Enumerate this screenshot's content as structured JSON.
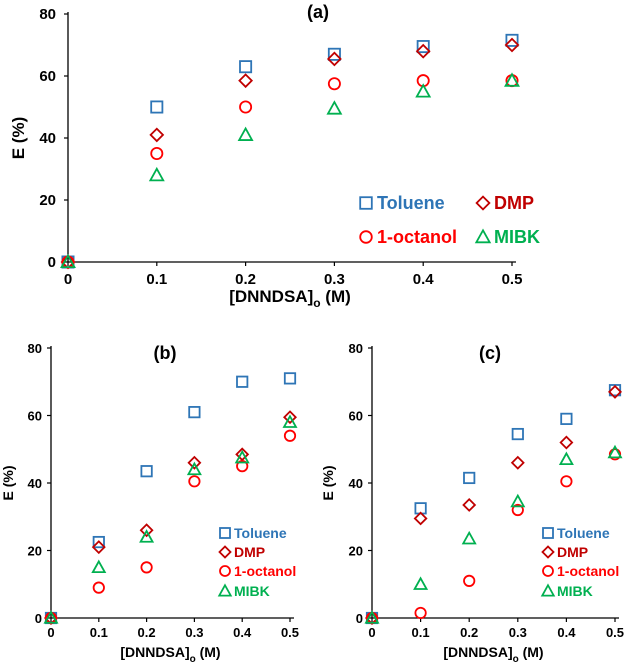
{
  "colors": {
    "toluene": "#2e75b6",
    "dmp": "#c00000",
    "octanol": "#ff0000",
    "mibk": "#00b050",
    "axis": "#000000"
  },
  "chart_data": [
    {
      "id": "a",
      "type": "scatter",
      "title": "(a)",
      "xlabel_main": "[DNNDSA]",
      "xlabel_sub": "o",
      "xlabel_tail": " (M)",
      "ylabel": "E (%)",
      "xlim": [
        0,
        0.5
      ],
      "ylim": [
        0,
        80
      ],
      "xticks": [
        "0",
        "0.1",
        "0.2",
        "0.3",
        "0.4",
        "0.5"
      ],
      "yticks": [
        "0",
        "20",
        "40",
        "60",
        "80"
      ],
      "legend_position": "bottom-right",
      "series": [
        {
          "name": "Toluene",
          "marker": "square",
          "color_key": "toluene",
          "x": [
            0,
            0.1,
            0.2,
            0.3,
            0.4,
            0.5
          ],
          "y": [
            0,
            50,
            63,
            67,
            69.5,
            71.5
          ]
        },
        {
          "name": "DMP",
          "marker": "diamond",
          "color_key": "dmp",
          "x": [
            0,
            0.1,
            0.2,
            0.3,
            0.4,
            0.5
          ],
          "y": [
            0,
            41,
            58.5,
            65.5,
            68,
            70
          ]
        },
        {
          "name": "1-octanol",
          "marker": "circle",
          "color_key": "octanol",
          "x": [
            0,
            0.1,
            0.2,
            0.3,
            0.4,
            0.5
          ],
          "y": [
            0,
            35,
            50,
            57.5,
            58.5,
            58.5
          ]
        },
        {
          "name": "MIBK",
          "marker": "triangle",
          "color_key": "mibk",
          "x": [
            0,
            0.1,
            0.2,
            0.3,
            0.4,
            0.5
          ],
          "y": [
            0,
            28,
            41,
            49.5,
            55,
            58.5
          ]
        }
      ]
    },
    {
      "id": "b",
      "type": "scatter",
      "title": "(b)",
      "xlabel_main": "[DNNDSA]",
      "xlabel_sub": "o",
      "xlabel_tail": " (M)",
      "ylabel": "E (%)",
      "xlim": [
        0,
        0.5
      ],
      "ylim": [
        0,
        80
      ],
      "xticks": [
        "0",
        "0.1",
        "0.2",
        "0.3",
        "0.4",
        "0.5"
      ],
      "yticks": [
        "0",
        "20",
        "40",
        "60",
        "80"
      ],
      "legend_position": "bottom-right",
      "series": [
        {
          "name": "Toluene",
          "marker": "square",
          "color_key": "toluene",
          "x": [
            0,
            0.1,
            0.2,
            0.3,
            0.4,
            0.5
          ],
          "y": [
            0,
            22.5,
            43.5,
            61,
            70,
            71
          ]
        },
        {
          "name": "DMP",
          "marker": "diamond",
          "color_key": "dmp",
          "x": [
            0,
            0.1,
            0.2,
            0.3,
            0.4,
            0.5
          ],
          "y": [
            0,
            21,
            26,
            46,
            48.5,
            59.5
          ]
        },
        {
          "name": "1-octanol",
          "marker": "circle",
          "color_key": "octanol",
          "x": [
            0,
            0.1,
            0.2,
            0.3,
            0.4,
            0.5
          ],
          "y": [
            0,
            9,
            15,
            40.5,
            45,
            54
          ]
        },
        {
          "name": "MIBK",
          "marker": "triangle",
          "color_key": "mibk",
          "x": [
            0,
            0.1,
            0.2,
            0.3,
            0.4,
            0.5
          ],
          "y": [
            0,
            15,
            24,
            44,
            47.5,
            58
          ]
        }
      ]
    },
    {
      "id": "c",
      "type": "scatter",
      "title": "(c)",
      "xlabel_main": "[DNNDSA]",
      "xlabel_sub": "o",
      "xlabel_tail": " (M)",
      "ylabel": "E (%)",
      "xlim": [
        0,
        0.5
      ],
      "ylim": [
        0,
        80
      ],
      "xticks": [
        "0",
        "0.1",
        "0.2",
        "0.3",
        "0.4",
        "0.5"
      ],
      "yticks": [
        "0",
        "20",
        "40",
        "60",
        "80"
      ],
      "legend_position": "bottom-right",
      "series": [
        {
          "name": "Toluene",
          "marker": "square",
          "color_key": "toluene",
          "x": [
            0,
            0.1,
            0.2,
            0.3,
            0.4,
            0.5
          ],
          "y": [
            0,
            32.5,
            41.5,
            54.5,
            59,
            67.5
          ]
        },
        {
          "name": "DMP",
          "marker": "diamond",
          "color_key": "dmp",
          "x": [
            0,
            0.1,
            0.2,
            0.3,
            0.4,
            0.5
          ],
          "y": [
            0,
            29.5,
            33.5,
            46,
            52,
            67
          ]
        },
        {
          "name": "1-octanol",
          "marker": "circle",
          "color_key": "octanol",
          "x": [
            0,
            0.1,
            0.2,
            0.3,
            0.4,
            0.5
          ],
          "y": [
            0,
            1.5,
            11,
            32,
            40.5,
            48.5
          ]
        },
        {
          "name": "MIBK",
          "marker": "triangle",
          "color_key": "mibk",
          "x": [
            0,
            0.1,
            0.2,
            0.3,
            0.4,
            0.5
          ],
          "y": [
            0,
            10,
            23.5,
            34.5,
            47,
            49
          ]
        }
      ]
    }
  ]
}
